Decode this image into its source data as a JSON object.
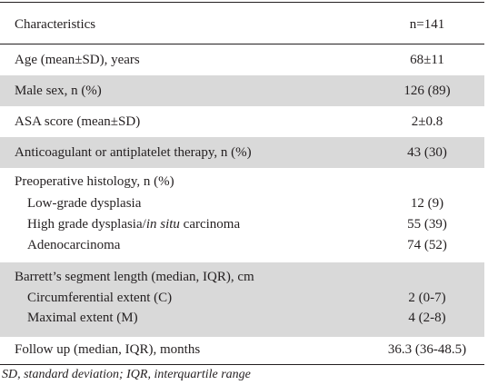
{
  "table": {
    "header": [
      "Characteristics",
      "n=141"
    ],
    "rows": [
      {
        "label": "Age (mean±SD), years",
        "value": "68±11"
      },
      {
        "label": "Male sex, n (%)",
        "value": "126 (89)"
      },
      {
        "label": "ASA score (mean±SD)",
        "value": "2±0.8"
      },
      {
        "label": "Anticoagulant or antiplatelet therapy, n (%)",
        "value": "43 (30)"
      },
      {
        "label": "Preoperative histology, n (%)",
        "items": [
          {
            "label": "Low-grade dysplasia",
            "value": "12 (9)"
          },
          {
            "label_parts": [
              "High grade dysplasia/",
              "in situ",
              " carcinoma"
            ],
            "value": "55 (39)"
          },
          {
            "label": "Adenocarcinoma",
            "value": "74 (52)"
          }
        ]
      },
      {
        "label": "Barrett’s segment length (median, IQR), cm",
        "items": [
          {
            "label": "Circumferential extent (C)",
            "value": "2 (0-7)"
          },
          {
            "label": "Maximal extent (M)",
            "value": "4 (2-8)"
          }
        ]
      },
      {
        "label": "Follow up (median, IQR), months",
        "value": "36.3 (36-48.5)"
      }
    ]
  },
  "footnote": "SD, standard deviation; IQR, interquartile range"
}
